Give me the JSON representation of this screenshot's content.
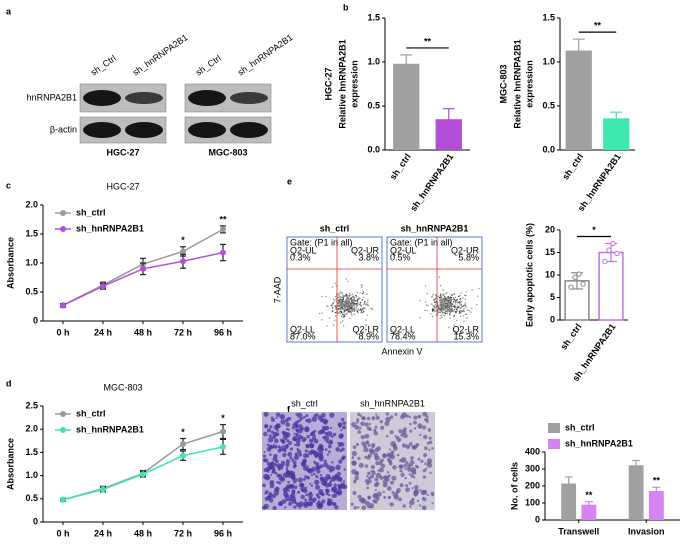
{
  "panel_labels": [
    "a",
    "b",
    "c",
    "d",
    "e",
    "f"
  ],
  "blot": {
    "lanes": [
      "sh_Ctrl",
      "sh_hnRNPA2B1"
    ],
    "proteins": [
      "hnRNPA2B1",
      "β-actin"
    ],
    "cell_lines": [
      "HGC-27",
      "MGC-803"
    ]
  },
  "flow": {
    "xlabel": "Annexin V",
    "ylabel": "7-AAD",
    "samples": [
      {
        "title": "sh_ctrl",
        "gate": "Gate: (P1 in all)",
        "quadrants": [
          [
            "Q2-UL",
            "0.3%"
          ],
          [
            "Q2-UR",
            "3.8%"
          ],
          [
            "Q2-LL",
            "87.0%"
          ],
          [
            "Q2-LR",
            "8.9%"
          ]
        ]
      },
      {
        "title": "sh_hnRNPA2B1",
        "gate": "Gate: (P1 in all)",
        "quadrants": [
          [
            "Q2-UL",
            "0.5%"
          ],
          [
            "Q2-UR",
            "5.8%"
          ],
          [
            "Q2-LL",
            "78.4%"
          ],
          [
            "Q2-LR",
            "15.3%"
          ]
        ]
      }
    ]
  },
  "transwell": {
    "labels": [
      "sh_ctrl",
      "sh_hnRNPA2B1"
    ]
  },
  "chart_data": [
    {
      "type": "bar",
      "title": "HGC-27",
      "ylabel": [
        "Relative hnRNPA2B1",
        "expression"
      ],
      "categories": [
        "sh_ctrl",
        "sh_hnRNPA2B1"
      ],
      "values": [
        0.98,
        0.35
      ],
      "errors": [
        0.1,
        0.12
      ],
      "colors": [
        "#a0a0a0",
        "#b24fd6"
      ],
      "ylim": [
        0,
        1.5
      ],
      "yticks": [
        {
          "value": 0,
          "label": "0.0"
        },
        0.5,
        {
          "value": 1,
          "label": "1.0"
        },
        1.5
      ],
      "significance": "**"
    },
    {
      "type": "bar",
      "title": "MGC-803",
      "ylabel": [
        "Relative hnRNPA2B1",
        "expression"
      ],
      "categories": [
        "sh_ctrl",
        "sh_hnRNPA2B1"
      ],
      "values": [
        1.13,
        0.36
      ],
      "errors": [
        0.13,
        0.07
      ],
      "colors": [
        "#a0a0a0",
        "#3de8b0"
      ],
      "ylim": [
        0,
        1.5
      ],
      "yticks": [
        {
          "value": 0,
          "label": "0.0"
        },
        0.5,
        {
          "value": 1,
          "label": "1.0"
        },
        1.5
      ],
      "significance": "**"
    },
    {
      "type": "line",
      "title": "HGC-27",
      "ylabel": "Absorbance",
      "categories": [
        "0 h",
        "24 h",
        "48 h",
        "72 h",
        "96 h"
      ],
      "series": [
        {
          "name": "sh_ctrl",
          "color": "#9a9a9a",
          "values": [
            0.27,
            0.62,
            0.98,
            1.2,
            1.58
          ],
          "errors": [
            0.03,
            0.05,
            0.1,
            0.08,
            0.06
          ]
        },
        {
          "name": "sh_hnRNPA2B1",
          "color": "#b04fd8",
          "values": [
            0.27,
            0.6,
            0.9,
            1.03,
            1.18
          ],
          "errors": [
            0.03,
            0.05,
            0.1,
            0.12,
            0.14
          ]
        }
      ],
      "annotations": [
        null,
        null,
        null,
        "*",
        "**"
      ],
      "ylim": [
        0,
        2
      ],
      "yticks": [
        0,
        0.5,
        {
          "value": 1,
          "label": "1.0"
        },
        1.5,
        {
          "value": 2,
          "label": "2.0"
        }
      ]
    },
    {
      "type": "line",
      "title": "MGC-803",
      "ylabel": "Absorbance",
      "categories": [
        "0 h",
        "24 h",
        "48 h",
        "72 h",
        "96 h"
      ],
      "series": [
        {
          "name": "sh_ctrl",
          "color": "#9a9a9a",
          "values": [
            0.48,
            0.72,
            1.05,
            1.68,
            1.95
          ],
          "errors": [
            0.03,
            0.05,
            0.06,
            0.12,
            0.15
          ]
        },
        {
          "name": "sh_hnRNPA2B1",
          "color": "#3de8b0",
          "values": [
            0.48,
            0.7,
            1.03,
            1.43,
            1.62
          ],
          "errors": [
            0.03,
            0.05,
            0.06,
            0.1,
            0.16
          ]
        }
      ],
      "annotations": [
        null,
        null,
        null,
        "*",
        "*"
      ],
      "ylim": [
        0,
        2.5
      ],
      "yticks": [
        0,
        0.5,
        {
          "value": 1,
          "label": "1.0"
        },
        1.5,
        {
          "value": 2,
          "label": "2.0"
        },
        2.5
      ]
    },
    {
      "type": "bar",
      "style": "outline",
      "ylabel": "Early apoptotic cells (%)",
      "categories": [
        "sh_ctrl",
        "sh_hnRNPA2B1"
      ],
      "values": [
        8.7,
        15
      ],
      "errors": [
        1.8,
        2
      ],
      "points": [
        [
          7.3,
          9.5,
          10.2,
          8
        ],
        [
          13,
          15.5,
          17,
          14.8
        ]
      ],
      "colors": [
        "#888888",
        "#c56ee8"
      ],
      "ylim": [
        0,
        20
      ],
      "yticks": [
        0,
        5,
        10,
        15,
        20
      ],
      "significance": "*"
    },
    {
      "type": "bar",
      "ylabel": "No. of cells",
      "categories": [
        "Transwell",
        "Invasion"
      ],
      "series": [
        {
          "name": "sh_ctrl",
          "color": "#a0a0a0",
          "values": [
            215,
            322
          ],
          "errors": [
            38,
            28
          ]
        },
        {
          "name": "sh_hnRNPA2B1",
          "color": "#d583f5",
          "values": [
            90,
            170
          ],
          "errors": [
            18,
            22
          ]
        }
      ],
      "annotations": [
        "**",
        "**"
      ],
      "ylim": [
        0,
        400
      ],
      "yticks": [
        0,
        100,
        200,
        300,
        400
      ]
    }
  ]
}
